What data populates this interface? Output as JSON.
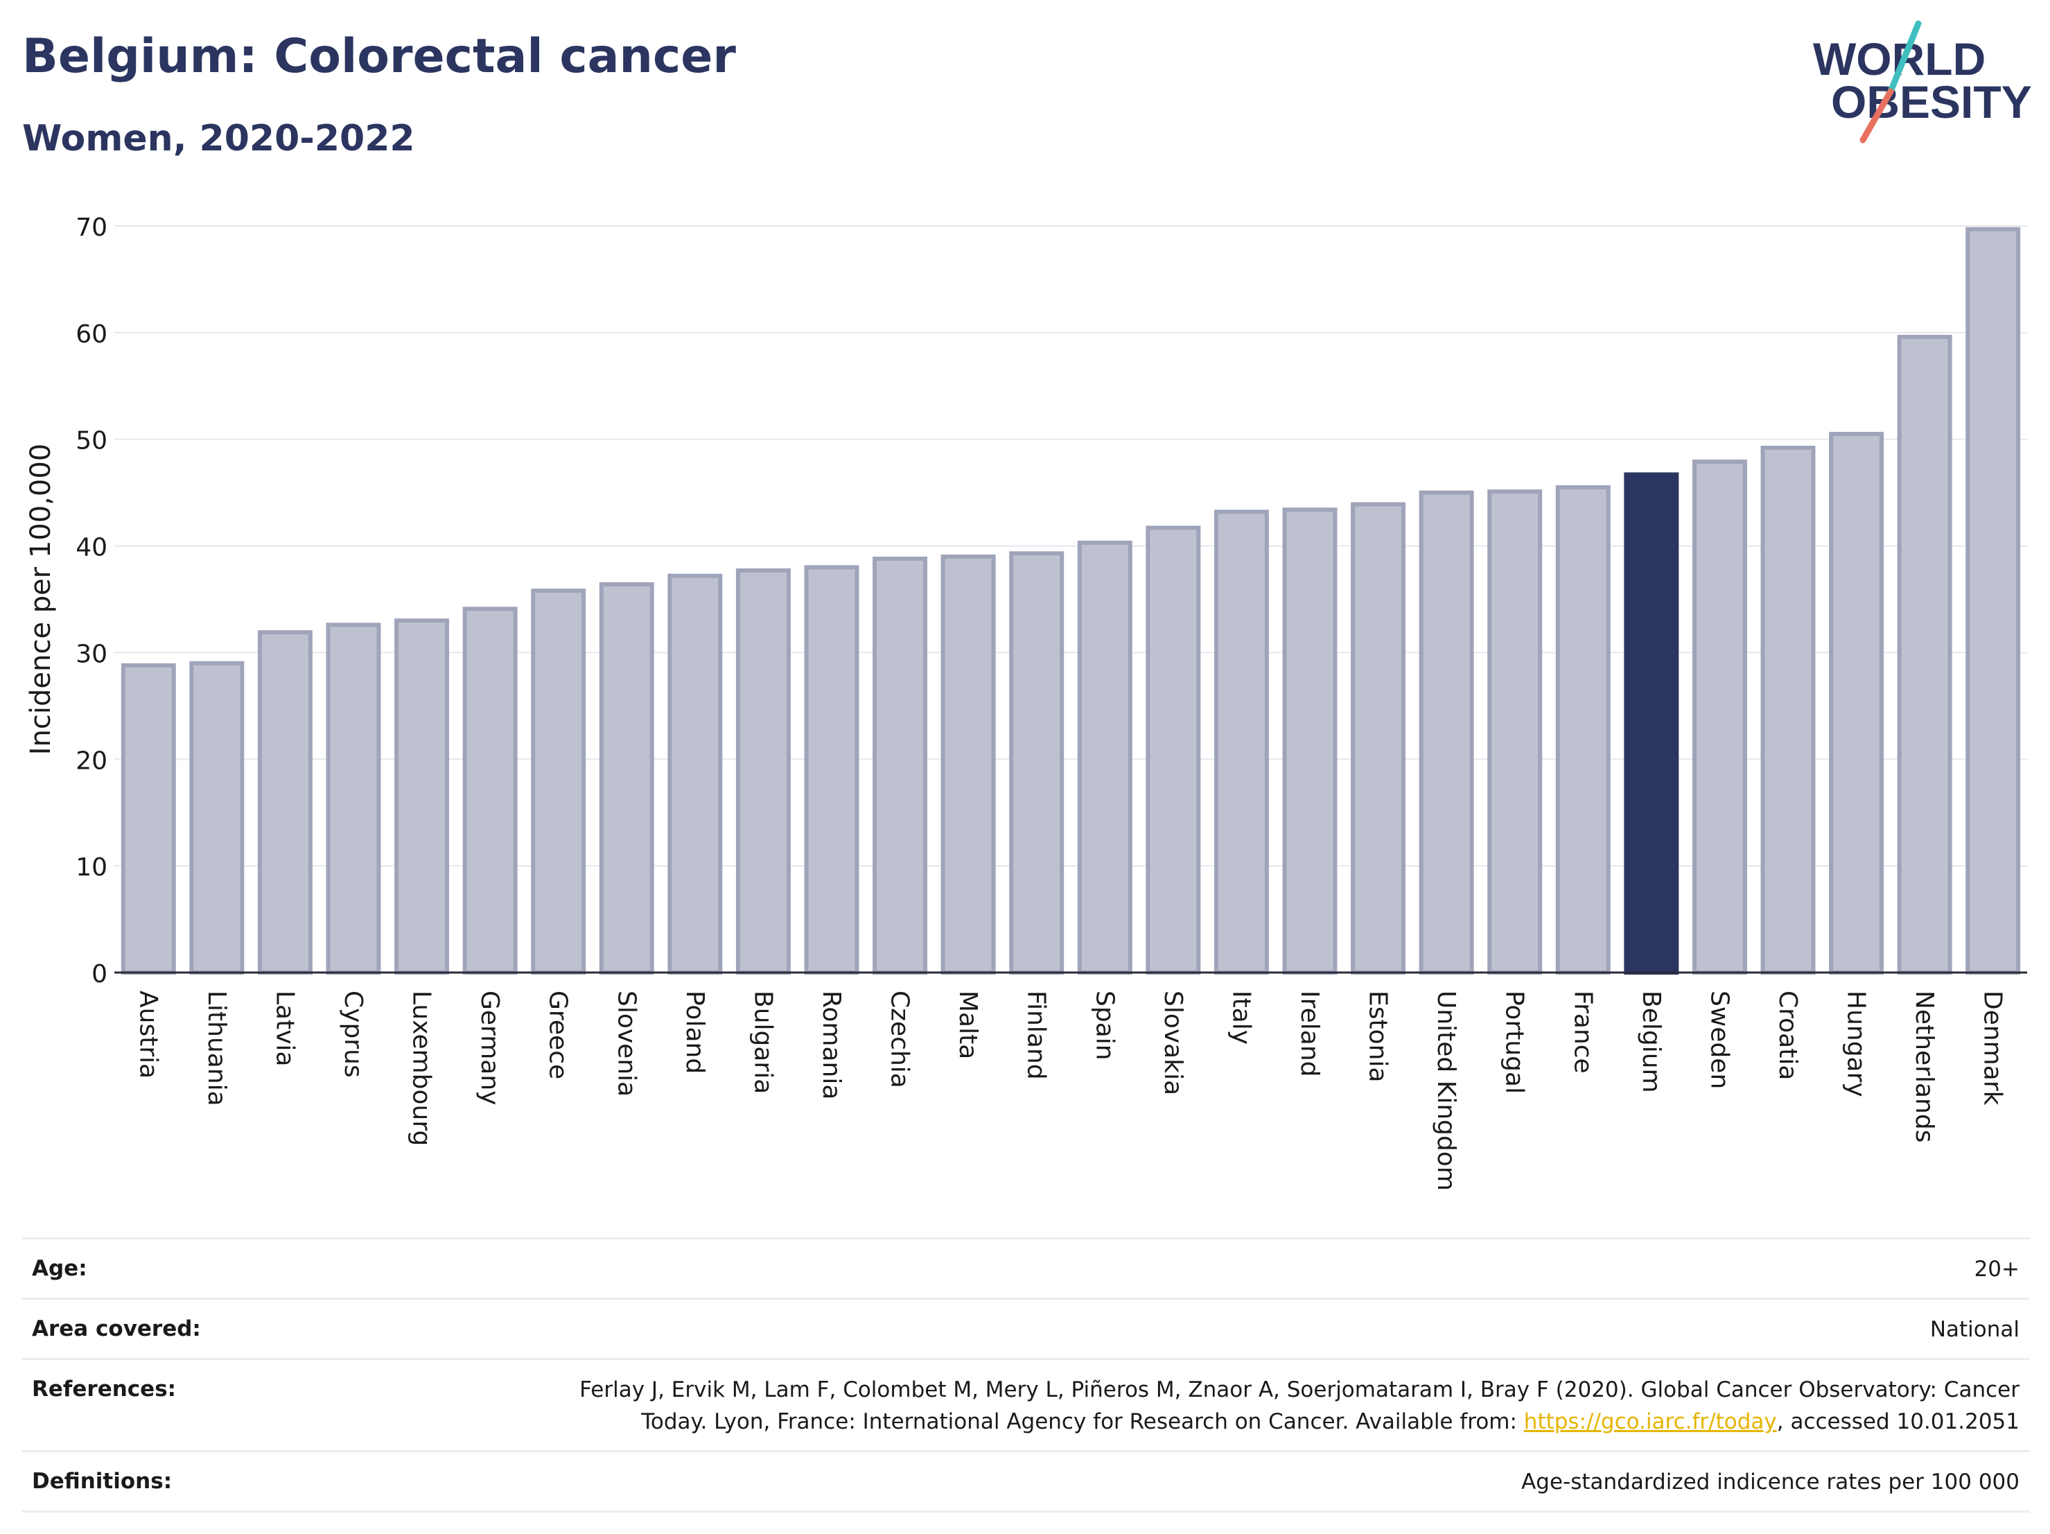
{
  "header": {
    "title": "Belgium: Colorectal cancer",
    "subtitle": "Women, 2020-2022",
    "logo_line1": "WORLD",
    "logo_line2": "OBESITY"
  },
  "colors": {
    "title": "#2b3560",
    "highlight_bar": "#2b3560",
    "bar_fill": "#bec1cf",
    "bar_stroke": "#9fa4ba",
    "logo_teal": "#3fbfbf",
    "logo_coral": "#e87060",
    "link": "#e6b400"
  },
  "chart_data": {
    "type": "bar",
    "ylabel": "Incidence per 100,000",
    "xlabel": "",
    "ylim": [
      0,
      70
    ],
    "yticks": [
      0,
      10,
      20,
      30,
      40,
      50,
      60,
      70
    ],
    "grid": true,
    "highlight": "Belgium",
    "categories": [
      "Austria",
      "Lithuania",
      "Latvia",
      "Cyprus",
      "Luxembourg",
      "Germany",
      "Greece",
      "Slovenia",
      "Poland",
      "Bulgaria",
      "Romania",
      "Czechia",
      "Malta",
      "Finland",
      "Spain",
      "Slovakia",
      "Italy",
      "Ireland",
      "Estonia",
      "United Kingdom",
      "Portugal",
      "France",
      "Belgium",
      "Sweden",
      "Croatia",
      "Hungary",
      "Netherlands",
      "Denmark"
    ],
    "values": [
      28.8,
      29.0,
      31.9,
      32.6,
      33.0,
      34.1,
      35.8,
      36.4,
      37.2,
      37.7,
      38.0,
      38.8,
      39.0,
      39.3,
      40.3,
      41.7,
      43.2,
      43.4,
      43.9,
      45.0,
      45.1,
      45.5,
      46.7,
      47.9,
      49.2,
      50.5,
      59.6,
      69.7
    ]
  },
  "meta": {
    "age_label": "Age:",
    "age_value": "20+",
    "area_label": "Area covered:",
    "area_value": "National",
    "references_label": "References:",
    "references_line1": "Ferlay J, Ervik M, Lam F, Colombet M, Mery L, Piñeros M, Znaor A, Soerjomataram I, Bray F (2020). Global Cancer Observatory: Cancer",
    "references_line2_pre": "Today. Lyon, France: International Agency for Research on Cancer. Available from: ",
    "references_link": "https://gco.iarc.fr/today",
    "references_line2_post": ", accessed 10.01.2051",
    "definitions_label": "Definitions:",
    "definitions_value": "Age-standardized indicence rates per 100 000"
  }
}
